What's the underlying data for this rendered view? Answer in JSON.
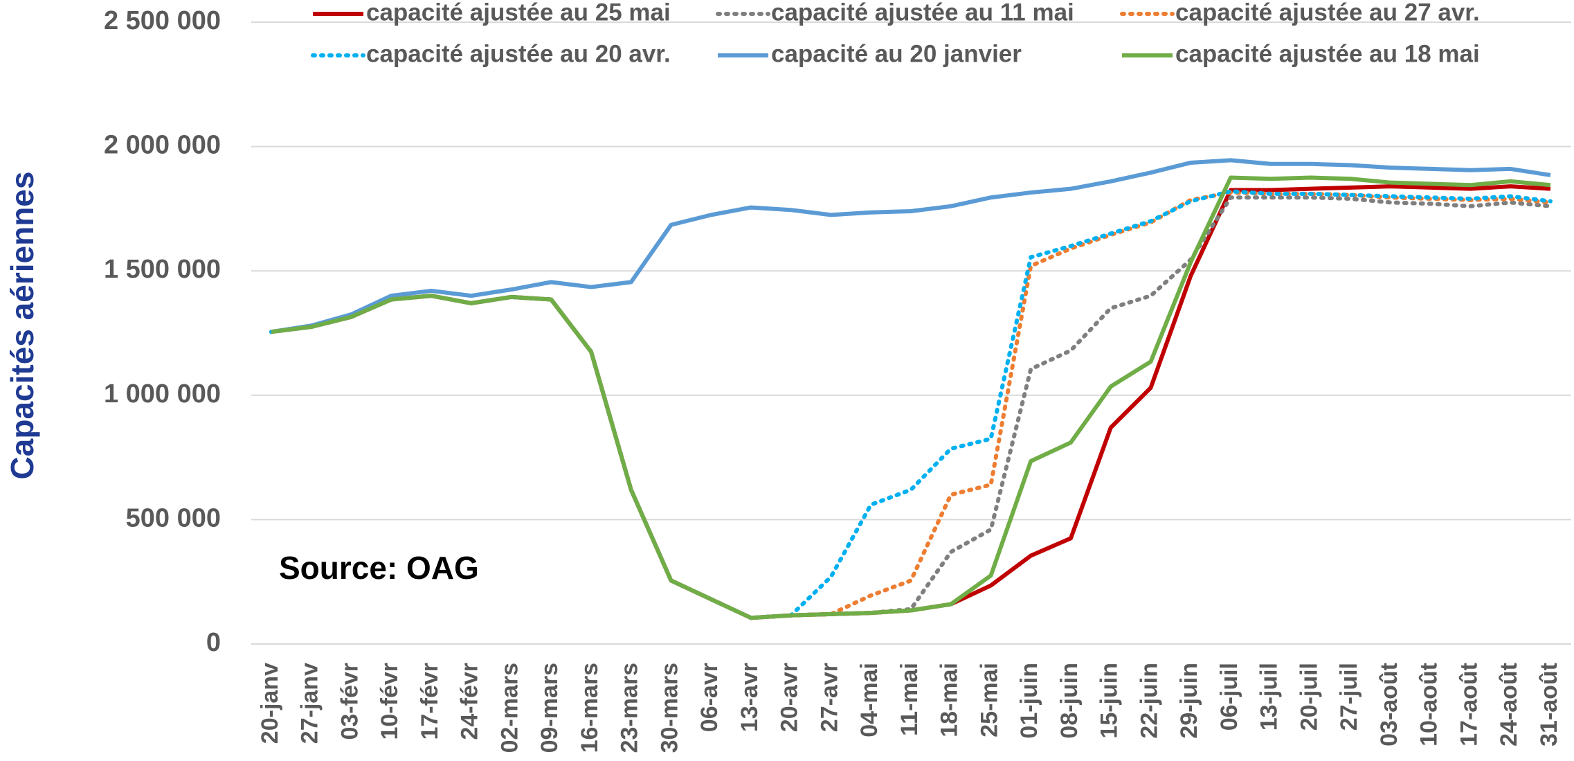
{
  "chart_data": {
    "type": "line",
    "y_label": "Capacités aériennes",
    "annotation": "Source: OAG",
    "categories": [
      "20-janv",
      "27-janv",
      "03-févr",
      "10-févr",
      "17-févr",
      "24-févr",
      "02-mars",
      "09-mars",
      "16-mars",
      "23-mars",
      "30-mars",
      "06-avr",
      "13-avr",
      "20-avr",
      "27-avr",
      "04-mai",
      "11-mai",
      "18-mai",
      "25-mai",
      "01-juin",
      "08-juin",
      "15-juin",
      "22-juin",
      "29-juin",
      "06-juil",
      "13-juil",
      "20-juil",
      "27-juil",
      "03-août",
      "10-août",
      "17-août",
      "24-août",
      "31-août"
    ],
    "series": [
      {
        "name": "capacité ajustée au 25 mai",
        "color": "#c00000",
        "dash": "solid",
        "values": [
          1255000,
          1275000,
          1315000,
          1385000,
          1400000,
          1370000,
          1395000,
          1385000,
          1175000,
          620000,
          255000,
          180000,
          105000,
          115000,
          120000,
          125000,
          135000,
          160000,
          235000,
          355000,
          425000,
          870000,
          1030000,
          1480000,
          1825000,
          1825000,
          1830000,
          1835000,
          1840000,
          1835000,
          1830000,
          1840000,
          1830000
        ]
      },
      {
        "name": "capacité ajustée au 11 mai",
        "color": "#7f7f7f",
        "dash": "dot",
        "values": [
          1255000,
          1275000,
          1315000,
          1385000,
          1400000,
          1370000,
          1395000,
          1385000,
          1175000,
          620000,
          255000,
          180000,
          105000,
          115000,
          120000,
          125000,
          140000,
          370000,
          460000,
          1105000,
          1180000,
          1350000,
          1400000,
          1545000,
          1795000,
          1795000,
          1795000,
          1790000,
          1775000,
          1770000,
          1760000,
          1775000,
          1760000
        ]
      },
      {
        "name": "capacité ajustée au 27 avr.",
        "color": "#ed7d31",
        "dash": "dot",
        "values": [
          1255000,
          1275000,
          1315000,
          1385000,
          1400000,
          1370000,
          1395000,
          1385000,
          1175000,
          620000,
          255000,
          180000,
          105000,
          115000,
          120000,
          195000,
          255000,
          600000,
          640000,
          1520000,
          1590000,
          1645000,
          1695000,
          1785000,
          1815000,
          1810000,
          1810000,
          1805000,
          1795000,
          1790000,
          1785000,
          1790000,
          1775000
        ]
      },
      {
        "name": "capacité ajustée au 20 avr.",
        "color": "#00b0f0",
        "dash": "dot",
        "values": [
          1255000,
          1275000,
          1315000,
          1385000,
          1400000,
          1370000,
          1395000,
          1385000,
          1175000,
          620000,
          255000,
          180000,
          105000,
          115000,
          270000,
          560000,
          620000,
          785000,
          825000,
          1555000,
          1600000,
          1650000,
          1700000,
          1780000,
          1820000,
          1810000,
          1810000,
          1805000,
          1800000,
          1795000,
          1790000,
          1800000,
          1780000
        ]
      },
      {
        "name": "capacité au 20 janvier",
        "color": "#5b9bd5",
        "dash": "solid",
        "values": [
          1255000,
          1280000,
          1325000,
          1400000,
          1420000,
          1400000,
          1425000,
          1455000,
          1435000,
          1455000,
          1685000,
          1725000,
          1755000,
          1745000,
          1725000,
          1735000,
          1740000,
          1760000,
          1795000,
          1815000,
          1830000,
          1860000,
          1895000,
          1935000,
          1945000,
          1930000,
          1930000,
          1925000,
          1915000,
          1910000,
          1905000,
          1910000,
          1885000
        ]
      },
      {
        "name": "capacité ajustée au 18 mai",
        "color": "#70ad47",
        "dash": "solid",
        "values": [
          1255000,
          1275000,
          1315000,
          1385000,
          1400000,
          1370000,
          1395000,
          1385000,
          1175000,
          620000,
          255000,
          180000,
          105000,
          115000,
          120000,
          125000,
          135000,
          160000,
          275000,
          735000,
          810000,
          1035000,
          1135000,
          1535000,
          1875000,
          1870000,
          1875000,
          1870000,
          1855000,
          1850000,
          1845000,
          1860000,
          1845000
        ]
      }
    ],
    "ylim": [
      0,
      2500000
    ],
    "yticks": [
      0,
      {
        "value": 500000,
        "label": "500 000"
      },
      {
        "value": 1000000,
        "label": "1 000 000"
      },
      {
        "value": 1500000,
        "label": "1 500 000"
      },
      {
        "value": 2000000,
        "label": "2 000 000"
      },
      {
        "value": 2500000,
        "label": "2 500 000"
      }
    ],
    "grid": true,
    "legend": "top"
  }
}
